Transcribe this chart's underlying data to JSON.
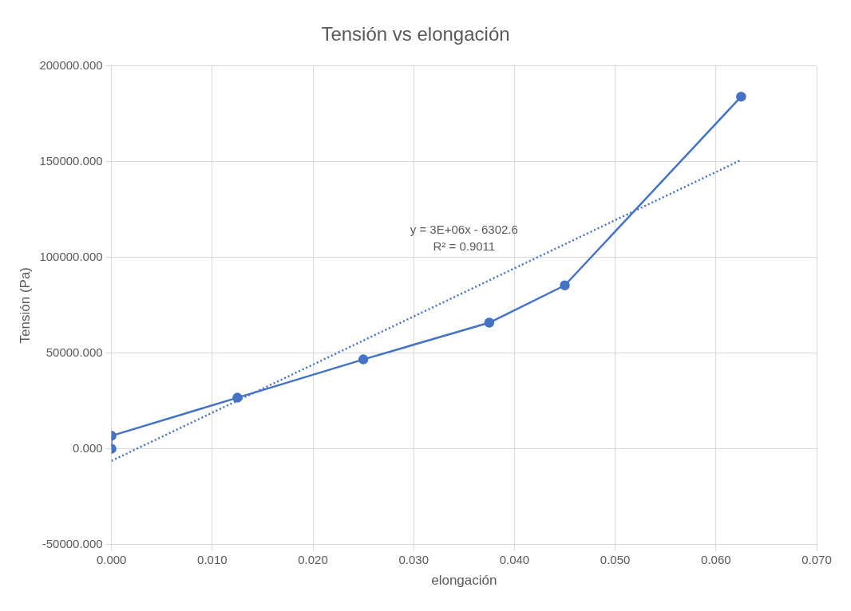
{
  "chart_data": {
    "type": "line",
    "title": "Tensión vs elongación",
    "xlabel": "elongación",
    "ylabel": "Tensión (Pa)",
    "xlim": [
      0,
      0.07
    ],
    "xticks": [
      {
        "value": 0,
        "label": "0.000"
      },
      {
        "value": 0.01,
        "label": "0.010"
      },
      {
        "value": 0.02,
        "label": "0.020"
      },
      {
        "value": 0.03,
        "label": "0.030"
      },
      {
        "value": 0.04,
        "label": "0.040"
      },
      {
        "value": 0.05,
        "label": "0.050"
      },
      {
        "value": 0.06,
        "label": "0.060"
      },
      {
        "value": 0.07,
        "label": "0.070"
      }
    ],
    "ylim": [
      -50000,
      200000
    ],
    "yticks": [
      {
        "value": -50000,
        "label": "-50000.000"
      },
      {
        "value": 0,
        "label": "0.000"
      },
      {
        "value": 50000,
        "label": "50000.000"
      },
      {
        "value": 100000,
        "label": "100000.000"
      },
      {
        "value": 150000,
        "label": "150000.000"
      },
      {
        "value": 200000,
        "label": "200000.000"
      }
    ],
    "grid": true,
    "legend": false,
    "marker": "circle",
    "annotations": [
      "y = 3E+06x - 6302.6",
      "R² = 0.9011"
    ],
    "series": [
      {
        "color": "#4472c4",
        "x": [
          0,
          0,
          0.0125,
          0.025,
          0.0375,
          0.045,
          0.0625
        ],
        "values": [
          0,
          6800,
          26700,
          46700,
          65900,
          85400,
          184000
        ]
      },
      {
        "type": "line",
        "color": "#4472c4",
        "line_style": "dotted",
        "marker": "none",
        "x": [
          0,
          0.0625
        ],
        "values": [
          -6300,
          150900
        ]
      }
    ]
  }
}
